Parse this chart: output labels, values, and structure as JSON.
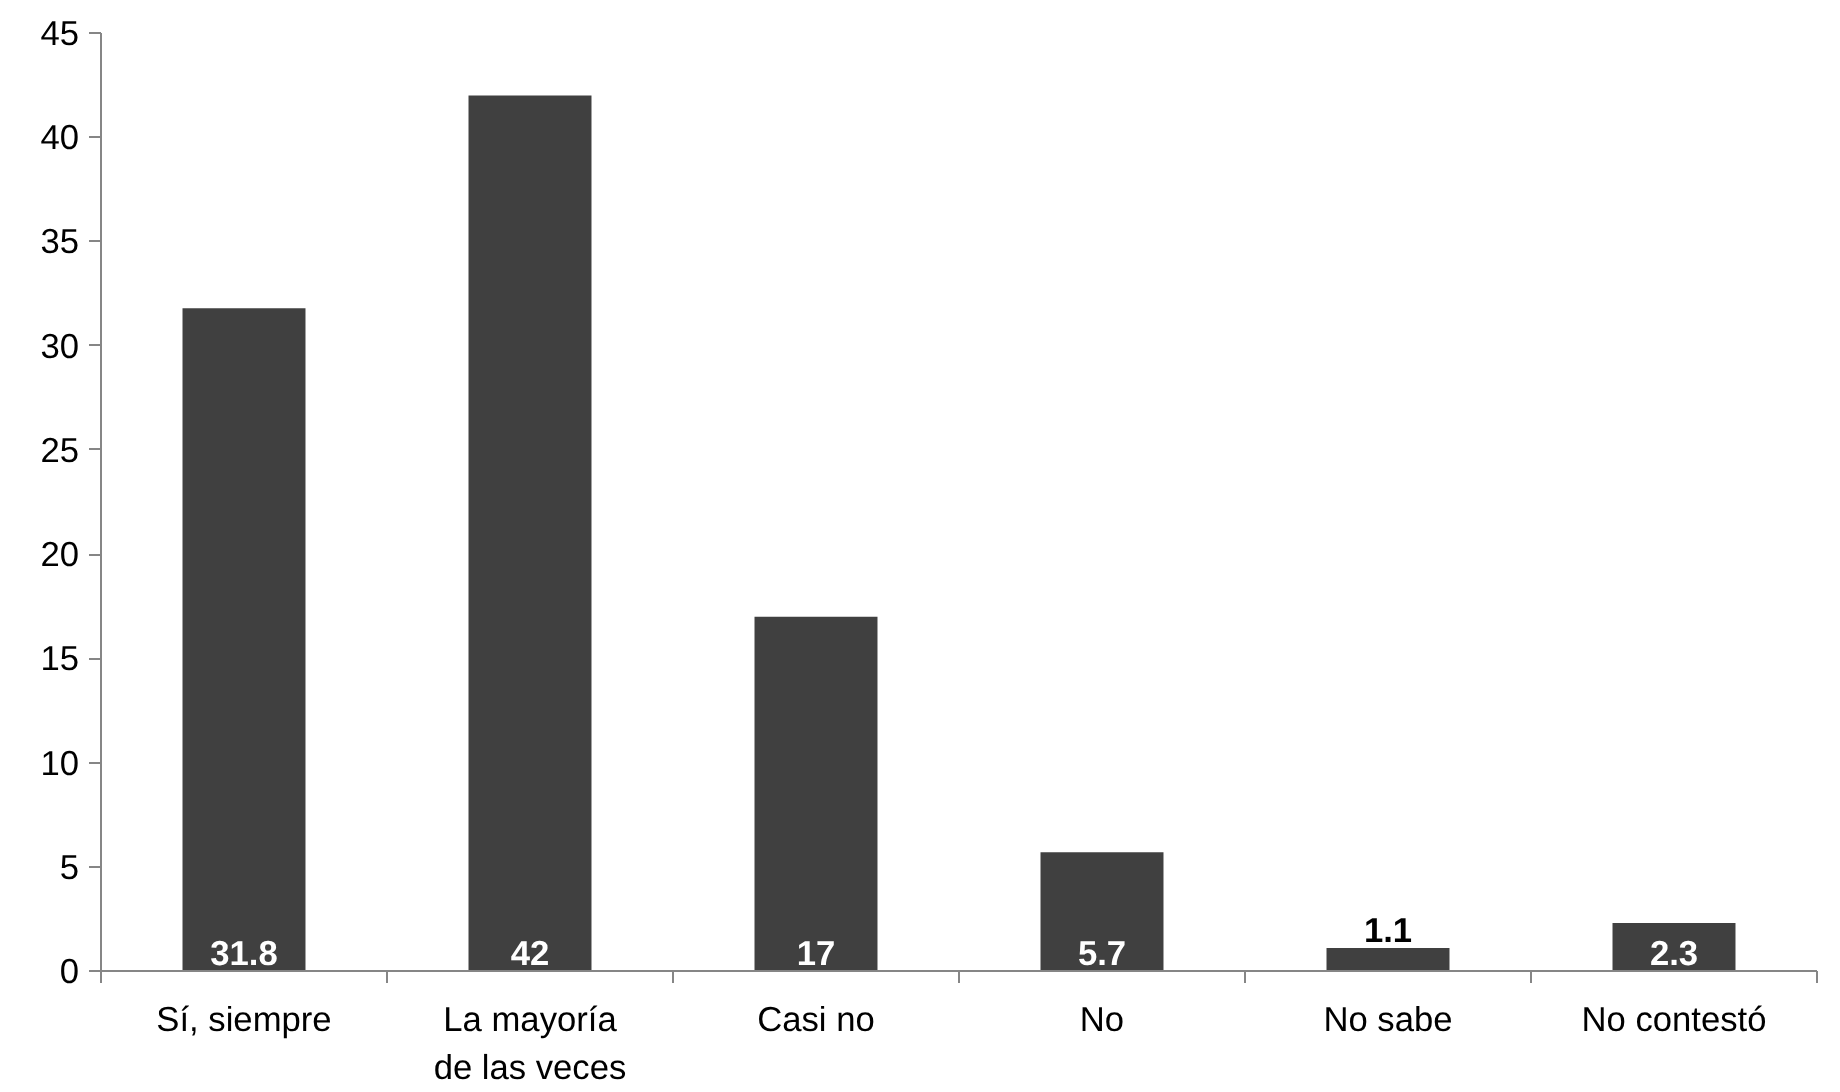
{
  "chart_data": {
    "type": "bar",
    "categories": [
      "Sí, siempre",
      "La mayoría\nde las veces",
      "Casi no",
      "No",
      "No sabe",
      "No contestó"
    ],
    "values": [
      31.8,
      42,
      17,
      5.7,
      1.1,
      2.3
    ],
    "color": "#404040",
    "ylim": [
      0,
      45
    ],
    "yticks": [
      0,
      5,
      10,
      15,
      20,
      25,
      30,
      35,
      40,
      45
    ],
    "grid": false,
    "data_labels": true
  }
}
